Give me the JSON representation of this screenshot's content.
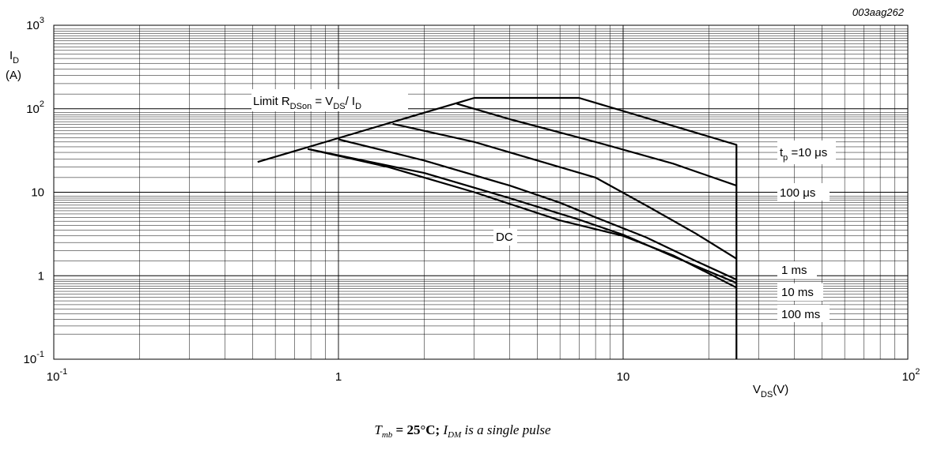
{
  "chart_data": {
    "type": "line",
    "doc_id": "003aag262",
    "x_scale": "log",
    "y_scale": "log",
    "xlim": [
      0.1,
      100
    ],
    "ylim": [
      0.1,
      1000
    ],
    "grid": true,
    "x_ticks": [
      {
        "base": "10",
        "exp": "-1"
      },
      {
        "base": "1",
        "exp": ""
      },
      {
        "base": "10",
        "exp": ""
      },
      {
        "base": "10",
        "exp": "2"
      }
    ],
    "y_ticks": [
      {
        "base": "10",
        "exp": "-1"
      },
      {
        "base": "1",
        "exp": ""
      },
      {
        "base": "10",
        "exp": ""
      },
      {
        "base": "10",
        "exp": "2"
      },
      {
        "base": "10",
        "exp": "3"
      }
    ],
    "y_axis_label": {
      "main": "I",
      "sub": "D",
      "unit": "(A)"
    },
    "x_axis_label": {
      "main": "V",
      "sub": "DS",
      "unit": "(V)"
    },
    "limit_label": {
      "p1": "Limit R",
      "s1": "DSon",
      "p2": " = V",
      "s2": "DS",
      "p3": "/ I",
      "s3": "D"
    },
    "caption": {
      "t": "T",
      "t_sub": "mb",
      "eq": " = 25°C;  ",
      "i": "I",
      "i_sub": "DM",
      "rest": " is a single pulse"
    },
    "series": [
      {
        "label_main": "t",
        "label_sub": "p",
        "label_rest": " =10 μs",
        "x": [
          3.0,
          7.0,
          25,
          25
        ],
        "y": [
          135,
          135,
          37,
          0.1
        ]
      },
      {
        "label_main": "100 μs",
        "label_sub": "",
        "label_rest": "",
        "x": [
          2.6,
          4.0,
          8.0,
          15,
          25
        ],
        "y": [
          115,
          75,
          40,
          22,
          12
        ]
      },
      {
        "label_main": "1 ms",
        "label_sub": "",
        "label_rest": "",
        "x": [
          1.55,
          3.0,
          6.0,
          8.0,
          12,
          18,
          25
        ],
        "y": [
          66,
          40,
          20,
          15,
          7,
          3.2,
          1.6
        ]
      },
      {
        "label_main": "10 ms",
        "label_sub": "",
        "label_rest": "",
        "x": [
          1.0,
          2.0,
          4.0,
          6.0,
          8.0,
          12,
          18,
          25
        ],
        "y": [
          43,
          24,
          12,
          7.5,
          5.0,
          2.9,
          1.5,
          0.9
        ]
      },
      {
        "label_main": "100 ms",
        "label_sub": "",
        "label_rest": "",
        "x": [
          0.78,
          2.0,
          4.0,
          7.0,
          10,
          15,
          25
        ],
        "y": [
          33,
          17,
          8.5,
          4.7,
          3.1,
          1.7,
          0.82
        ]
      },
      {
        "label_main": "DC",
        "label_sub": "",
        "label_rest": "",
        "x": [
          0.78,
          1.5,
          3.0,
          6.0,
          10,
          15,
          25
        ],
        "y": [
          33,
          20,
          10,
          4.6,
          3.0,
          1.75,
          0.72
        ]
      }
    ],
    "limit_line": {
      "x": [
        0.52,
        3.0
      ],
      "y": [
        23,
        135
      ]
    }
  }
}
